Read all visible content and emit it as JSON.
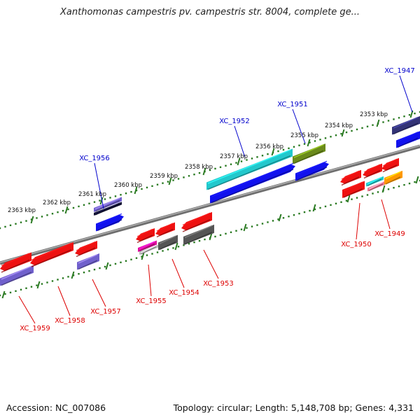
{
  "title": "Xanthomonas campestris pv. campestris str. 8004, complete ge...",
  "footer": {
    "accession": "Accession: NC_007086",
    "stats": "Topology: circular; Length: 5,148,708 bp; Genes: 4,331"
  },
  "colors": {
    "backbone": "#8a8a8a",
    "ticks": "#2a7a22",
    "label_upper": "#0000cc",
    "label_lower": "#dd0000",
    "red": "#ee1111",
    "blue": "#1111ee",
    "cyan": "#22c8cc",
    "olive": "#6a8a1a",
    "navy": "#333377",
    "purple": "#7060cc",
    "gray": "#555555",
    "magenta": "#e0109c",
    "orange": "#ff9900",
    "pink": "#f07890"
  },
  "ruler_labels": [
    "2353 kbp",
    "2354 kbp",
    "2355 kbp",
    "2356 kbp",
    "2357 kbp",
    "2358 kbp",
    "2359 kbp",
    "2360 kbp",
    "2361 kbp",
    "2362 kbp",
    "2363 kbp"
  ],
  "gene_labels_upper": [
    "XC_1947",
    "XC_1951",
    "XC_1952",
    "XC_1956"
  ],
  "gene_labels_lower": [
    "XC_1949",
    "XC_1950",
    "XC_1953",
    "XC_1954",
    "XC_1955",
    "XC_1957",
    "XC_1958",
    "XC_1959"
  ]
}
